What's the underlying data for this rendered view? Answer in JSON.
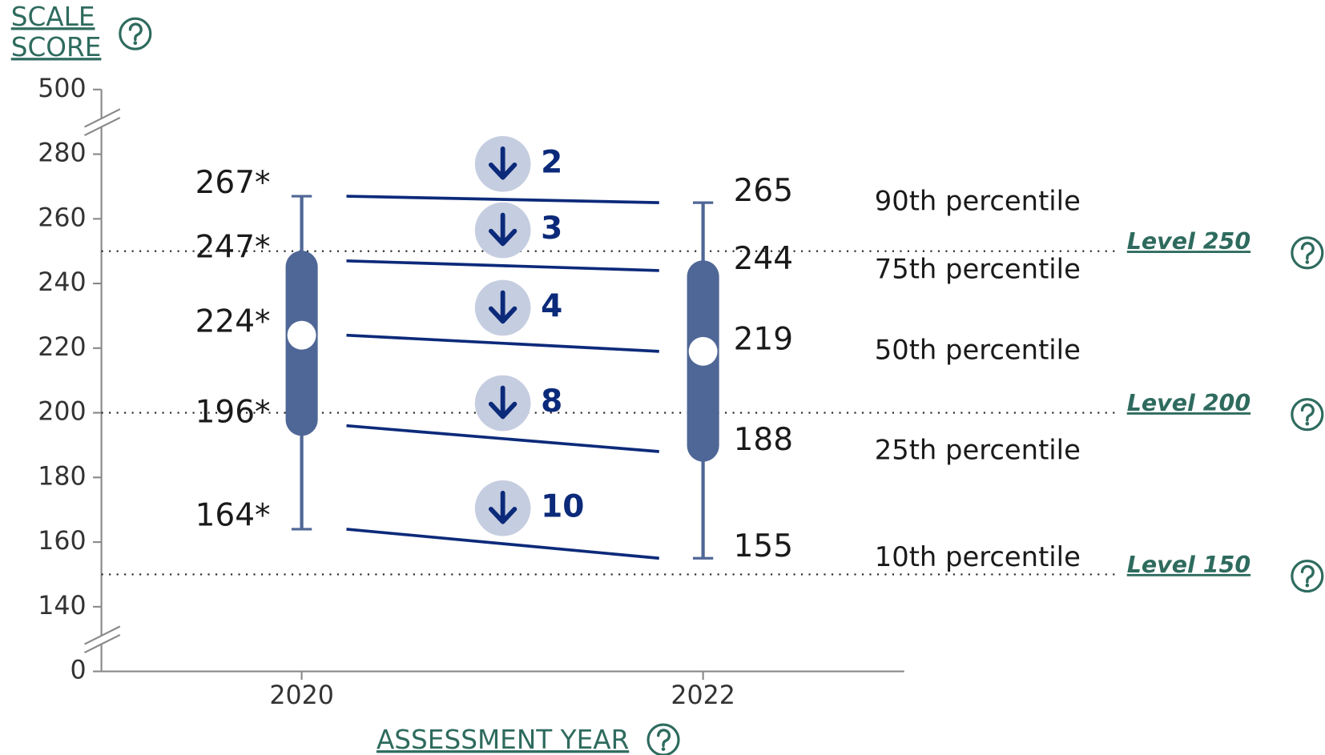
{
  "chart_data": {
    "type": "box",
    "y_label": "SCALE SCORE",
    "x_label": "ASSESSMENT YEAR",
    "percentiles": [
      "90th percentile",
      "75th percentile",
      "50th percentile",
      "25th percentile",
      "10th percentile"
    ],
    "series": [
      {
        "name": "2020",
        "color": "#4f6796",
        "values": [
          267,
          247,
          224,
          196,
          164
        ],
        "value_labels": [
          "267*",
          "247*",
          "224*",
          "196*",
          "164*"
        ]
      },
      {
        "name": "2022",
        "color": "#4f6796",
        "values": [
          265,
          244,
          219,
          188,
          155
        ]
      }
    ],
    "changes": {
      "values": [
        2,
        3,
        4,
        8,
        10
      ],
      "direction": "down",
      "color": "#0c2a7a"
    },
    "reference_lines": [
      {
        "label": "Level 250",
        "value": 250
      },
      {
        "label": "Level 200",
        "value": 200
      },
      {
        "label": "Level 150",
        "value": 150
      }
    ],
    "ylim": [
      0,
      500
    ],
    "yticks": [
      0,
      140,
      160,
      180,
      200,
      220,
      240,
      260,
      280,
      500
    ],
    "axis_breaks": [
      [
        0,
        140
      ],
      [
        280,
        500
      ]
    ]
  }
}
